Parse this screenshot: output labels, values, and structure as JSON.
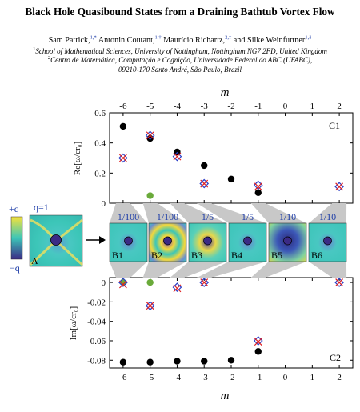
{
  "paper": {
    "title": "Black Hole Quasibound States from a Draining Bathtub Vortex Flow",
    "authors": [
      {
        "name": "Sam Patrick,",
        "sup": "1,*"
      },
      {
        "name": " Antonin Coutant,",
        "sup": "1,†"
      },
      {
        "name": " Maurício Richartz,",
        "sup": "2,‡"
      },
      {
        "name": " and Silke Weinfurtner",
        "sup": "1,§"
      }
    ],
    "affiliations": [
      {
        "sup": "1",
        "text": "School of Mathematical Sciences, University of Nottingham, Nottingham NG7 2FD, United Kingdom"
      },
      {
        "sup": "2",
        "text": "Centro de Matemática, Computação e Cognição, Universidade Federal do ABC (UFABC),"
      },
      {
        "sup": "",
        "text": "09210-170 Santo André, São Paulo, Brazil"
      }
    ]
  },
  "figure": {
    "colorbar": {
      "top_label": "+q",
      "bottom_label": "−q"
    },
    "q_label": "q=1",
    "panel_A_label": "A",
    "mode_panels": [
      {
        "label": "B1",
        "scale": "1/100"
      },
      {
        "label": "B2",
        "scale": "1/100"
      },
      {
        "label": "B3",
        "scale": "1/5"
      },
      {
        "label": "B4",
        "scale": "1/5"
      },
      {
        "label": "B5",
        "scale": "1/10"
      },
      {
        "label": "B6",
        "scale": "1/10"
      }
    ],
    "colors": {
      "black_dot": "#000000",
      "green_dot": "#6aaa3a",
      "blue_marker": "#2b3ec8",
      "red_marker": "#e02020",
      "field_teal": "#3cc6b8",
      "field_purple": "#3b2a85",
      "field_yellow": "#f2d83b"
    }
  },
  "chart_data": [
    {
      "type": "scatter",
      "panel_label": "C1",
      "xlabel": "m",
      "ylabel": "Re[ω/cr₀]",
      "xlim": [
        -6.5,
        2.5
      ],
      "ylim": [
        0,
        0.6
      ],
      "xticks": [
        -6,
        -5,
        -4,
        -3,
        -2,
        -1,
        0,
        1,
        2
      ],
      "yticks": [
        0,
        0.2,
        0.4,
        0.6
      ],
      "black_dots": [
        [
          -6,
          0.51
        ],
        [
          -5,
          0.43
        ],
        [
          -4,
          0.34
        ],
        [
          -3,
          0.25
        ],
        [
          -2,
          0.16
        ],
        [
          -1,
          0.07
        ]
      ],
      "green_dots": [
        [
          -5,
          0.05
        ]
      ],
      "blue_diamonds": [
        [
          -6,
          0.3
        ],
        [
          -5,
          0.45
        ],
        [
          -4,
          0.31
        ],
        [
          -3,
          0.13
        ],
        [
          -1,
          0.12
        ],
        [
          2,
          0.11
        ]
      ],
      "red_crosses": [
        [
          -6,
          0.3
        ],
        [
          -5,
          0.45
        ],
        [
          -4,
          0.31
        ],
        [
          -3,
          0.13
        ],
        [
          -1,
          0.11
        ],
        [
          2,
          0.11
        ]
      ]
    },
    {
      "type": "scatter",
      "panel_label": "C2",
      "xlabel": "m",
      "ylabel": "Im[ω/cr₀]",
      "xlim": [
        -6.5,
        2.5
      ],
      "ylim": [
        -0.088,
        0.005
      ],
      "xticks": [
        -6,
        -5,
        -4,
        -3,
        -2,
        -1,
        0,
        1,
        2
      ],
      "yticks": [
        0,
        -0.02,
        -0.04,
        -0.06,
        -0.08
      ],
      "black_dots": [
        [
          -6,
          -0.082
        ],
        [
          -5,
          -0.082
        ],
        [
          -4,
          -0.081
        ],
        [
          -3,
          -0.081
        ],
        [
          -2,
          -0.08
        ],
        [
          -1,
          -0.071
        ]
      ],
      "green_dots": [
        [
          -6,
          0.0
        ],
        [
          -5,
          0.0
        ]
      ],
      "blue_diamonds": [
        [
          -6,
          0.0
        ],
        [
          -5,
          -0.024
        ],
        [
          -4,
          -0.005
        ],
        [
          -3,
          0.0
        ],
        [
          -1,
          -0.06
        ],
        [
          2,
          0.0
        ]
      ],
      "red_crosses": [
        [
          -6,
          -0.002
        ],
        [
          -5,
          -0.024
        ],
        [
          -4,
          -0.006
        ],
        [
          -3,
          0.0
        ],
        [
          -1,
          -0.061
        ],
        [
          2,
          0.0
        ]
      ]
    }
  ]
}
